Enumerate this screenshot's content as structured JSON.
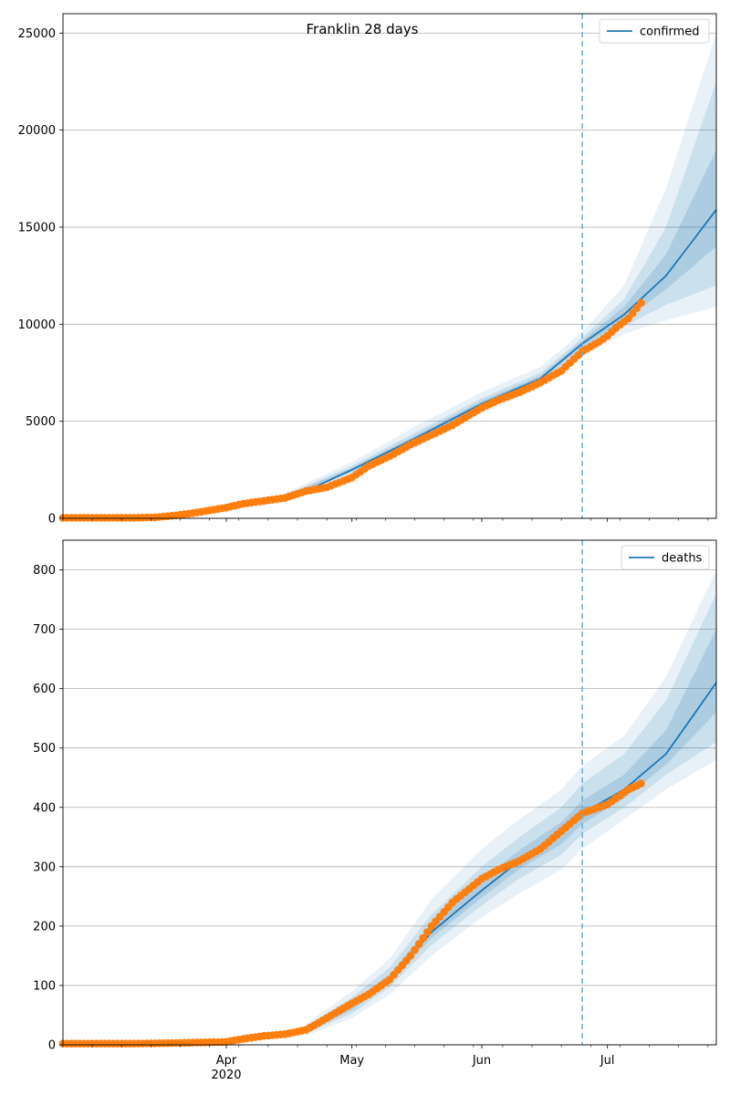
{
  "figure": {
    "title": "Franklin 28 days"
  },
  "colors": {
    "model": "#1f77b4",
    "observed": "#ff7f0e",
    "band": "#1f77b4",
    "grid": "#b0b0b0",
    "vline": "#6baed6"
  },
  "x_axis": {
    "start": "2020-02-22",
    "end": "2020-07-27",
    "ticks": [
      {
        "date": "2020-04-01",
        "label": "Apr",
        "sublabel": "2020"
      },
      {
        "date": "2020-05-01",
        "label": "May",
        "sublabel": ""
      },
      {
        "date": "2020-06-01",
        "label": "Jun",
        "sublabel": ""
      },
      {
        "date": "2020-07-01",
        "label": "Jul",
        "sublabel": ""
      }
    ],
    "forecast_start": "2020-06-25"
  },
  "chart_data": [
    {
      "type": "line",
      "title": "Franklin 28 days",
      "ylim": [
        0,
        26000
      ],
      "yticks": [
        0,
        5000,
        10000,
        15000,
        20000,
        25000
      ],
      "grid": true,
      "legend": "top-right",
      "series": [
        {
          "name": "confirmed",
          "kind": "model",
          "points": [
            [
              "2020-02-22",
              0
            ],
            [
              "2020-03-10",
              20
            ],
            [
              "2020-03-20",
              150
            ],
            [
              "2020-04-01",
              600
            ],
            [
              "2020-04-15",
              1100
            ],
            [
              "2020-04-20",
              1400
            ],
            [
              "2020-05-01",
              2500
            ],
            [
              "2020-05-15",
              4000
            ],
            [
              "2020-06-01",
              5900
            ],
            [
              "2020-06-15",
              7200
            ],
            [
              "2020-06-25",
              9000
            ],
            [
              "2020-07-05",
              10500
            ],
            [
              "2020-07-15",
              12500
            ],
            [
              "2020-07-27",
              15900
            ]
          ],
          "bands": [
            {
              "level": "outer",
              "lower": [
                [
                  "2020-04-15",
                  900
                ],
                [
                  "2020-05-01",
                  2200
                ],
                [
                  "2020-05-15",
                  3500
                ],
                [
                  "2020-06-01",
                  5400
                ],
                [
                  "2020-06-15",
                  6700
                ],
                [
                  "2020-06-25",
                  8400
                ],
                [
                  "2020-07-05",
                  9500
                ],
                [
                  "2020-07-15",
                  10200
                ],
                [
                  "2020-07-27",
                  10900
                ]
              ],
              "upper": [
                [
                  "2020-04-15",
                  1300
                ],
                [
                  "2020-05-01",
                  2900
                ],
                [
                  "2020-05-15",
                  4600
                ],
                [
                  "2020-06-01",
                  6500
                ],
                [
                  "2020-06-15",
                  7800
                ],
                [
                  "2020-06-25",
                  9600
                ],
                [
                  "2020-07-05",
                  12000
                ],
                [
                  "2020-07-15",
                  17000
                ],
                [
                  "2020-07-27",
                  25000
                ]
              ]
            },
            {
              "level": "middle",
              "lower": [
                [
                  "2020-04-15",
                  1000
                ],
                [
                  "2020-05-01",
                  2350
                ],
                [
                  "2020-05-15",
                  3750
                ],
                [
                  "2020-06-01",
                  5650
                ],
                [
                  "2020-06-15",
                  6950
                ],
                [
                  "2020-06-25",
                  8700
                ],
                [
                  "2020-07-05",
                  9900
                ],
                [
                  "2020-07-15",
                  11000
                ],
                [
                  "2020-07-27",
                  12000
                ]
              ],
              "upper": [
                [
                  "2020-04-15",
                  1200
                ],
                [
                  "2020-05-01",
                  2700
                ],
                [
                  "2020-05-15",
                  4300
                ],
                [
                  "2020-06-01",
                  6200
                ],
                [
                  "2020-06-15",
                  7500
                ],
                [
                  "2020-06-25",
                  9300
                ],
                [
                  "2020-07-05",
                  11300
                ],
                [
                  "2020-07-15",
                  15000
                ],
                [
                  "2020-07-27",
                  22500
                ]
              ]
            },
            {
              "level": "inner",
              "lower": [
                [
                  "2020-04-15",
                  1050
                ],
                [
                  "2020-05-01",
                  2420
                ],
                [
                  "2020-05-15",
                  3880
                ],
                [
                  "2020-06-01",
                  5780
                ],
                [
                  "2020-06-15",
                  7080
                ],
                [
                  "2020-06-25",
                  8850
                ],
                [
                  "2020-07-05",
                  10200
                ],
                [
                  "2020-07-15",
                  11800
                ],
                [
                  "2020-07-27",
                  14000
                ]
              ],
              "upper": [
                [
                  "2020-04-15",
                  1150
                ],
                [
                  "2020-05-01",
                  2600
                ],
                [
                  "2020-05-15",
                  4150
                ],
                [
                  "2020-06-01",
                  6050
                ],
                [
                  "2020-06-15",
                  7350
                ],
                [
                  "2020-06-25",
                  9150
                ],
                [
                  "2020-07-05",
                  10900
                ],
                [
                  "2020-07-15",
                  13600
                ],
                [
                  "2020-07-27",
                  19000
                ]
              ]
            }
          ]
        },
        {
          "name": "",
          "kind": "observed",
          "points": [
            [
              "2020-02-22",
              30
            ],
            [
              "2020-03-01",
              30
            ],
            [
              "2020-03-10",
              30
            ],
            [
              "2020-03-15",
              50
            ],
            [
              "2020-03-20",
              150
            ],
            [
              "2020-03-25",
              300
            ],
            [
              "2020-04-01",
              550
            ],
            [
              "2020-04-05",
              750
            ],
            [
              "2020-04-10",
              900
            ],
            [
              "2020-04-15",
              1050
            ],
            [
              "2020-04-20",
              1400
            ],
            [
              "2020-04-25",
              1600
            ],
            [
              "2020-05-01",
              2100
            ],
            [
              "2020-05-05",
              2700
            ],
            [
              "2020-05-10",
              3200
            ],
            [
              "2020-05-15",
              3800
            ],
            [
              "2020-05-20",
              4300
            ],
            [
              "2020-05-25",
              4800
            ],
            [
              "2020-06-01",
              5700
            ],
            [
              "2020-06-05",
              6100
            ],
            [
              "2020-06-10",
              6500
            ],
            [
              "2020-06-15",
              7000
            ],
            [
              "2020-06-20",
              7600
            ],
            [
              "2020-06-25",
              8600
            ],
            [
              "2020-06-29",
              9100
            ],
            [
              "2020-07-01",
              9400
            ],
            [
              "2020-07-03",
              9800
            ],
            [
              "2020-07-06",
              10300
            ],
            [
              "2020-07-09",
              11100
            ]
          ]
        }
      ]
    },
    {
      "type": "line",
      "title": "",
      "ylim": [
        0,
        850
      ],
      "yticks": [
        0,
        100,
        200,
        300,
        400,
        500,
        600,
        700,
        800
      ],
      "grid": true,
      "legend": "top-right",
      "series": [
        {
          "name": "deaths",
          "kind": "model",
          "points": [
            [
              "2020-02-22",
              0
            ],
            [
              "2020-03-20",
              2
            ],
            [
              "2020-04-01",
              5
            ],
            [
              "2020-04-10",
              12
            ],
            [
              "2020-04-20",
              25
            ],
            [
              "2020-05-01",
              65
            ],
            [
              "2020-05-10",
              110
            ],
            [
              "2020-05-20",
              190
            ],
            [
              "2020-06-01",
              260
            ],
            [
              "2020-06-10",
              310
            ],
            [
              "2020-06-20",
              355
            ],
            [
              "2020-06-25",
              390
            ],
            [
              "2020-07-05",
              430
            ],
            [
              "2020-07-15",
              490
            ],
            [
              "2020-07-27",
              610
            ]
          ],
          "bands": [
            {
              "level": "outer",
              "lower": [
                [
                  "2020-04-20",
                  15
                ],
                [
                  "2020-05-01",
                  45
                ],
                [
                  "2020-05-10",
                  85
                ],
                [
                  "2020-05-20",
                  150
                ],
                [
                  "2020-06-01",
                  215
                ],
                [
                  "2020-06-10",
                  255
                ],
                [
                  "2020-06-20",
                  295
                ],
                [
                  "2020-06-25",
                  330
                ],
                [
                  "2020-07-05",
                  380
                ],
                [
                  "2020-07-15",
                  430
                ],
                [
                  "2020-07-27",
                  480
                ]
              ],
              "upper": [
                [
                  "2020-04-20",
                  35
                ],
                [
                  "2020-05-01",
                  90
                ],
                [
                  "2020-05-10",
                  145
                ],
                [
                  "2020-05-20",
                  245
                ],
                [
                  "2020-06-01",
                  330
                ],
                [
                  "2020-06-10",
                  380
                ],
                [
                  "2020-06-20",
                  430
                ],
                [
                  "2020-06-25",
                  470
                ],
                [
                  "2020-07-05",
                  520
                ],
                [
                  "2020-07-15",
                  620
                ],
                [
                  "2020-07-27",
                  800
                ]
              ]
            },
            {
              "level": "middle",
              "lower": [
                [
                  "2020-04-20",
                  19
                ],
                [
                  "2020-05-01",
                  53
                ],
                [
                  "2020-05-10",
                  97
                ],
                [
                  "2020-05-20",
                  168
                ],
                [
                  "2020-06-01",
                  235
                ],
                [
                  "2020-06-10",
                  280
                ],
                [
                  "2020-06-20",
                  320
                ],
                [
                  "2020-06-25",
                  355
                ],
                [
                  "2020-07-05",
                  400
                ],
                [
                  "2020-07-15",
                  455
                ],
                [
                  "2020-07-27",
                  510
                ]
              ],
              "upper": [
                [
                  "2020-04-20",
                  31
                ],
                [
                  "2020-05-01",
                  80
                ],
                [
                  "2020-05-10",
                  130
                ],
                [
                  "2020-05-20",
                  220
                ],
                [
                  "2020-06-01",
                  300
                ],
                [
                  "2020-06-10",
                  350
                ],
                [
                  "2020-06-20",
                  400
                ],
                [
                  "2020-06-25",
                  440
                ],
                [
                  "2020-07-05",
                  490
                ],
                [
                  "2020-07-15",
                  580
                ],
                [
                  "2020-07-27",
                  760
                ]
              ]
            },
            {
              "level": "inner",
              "lower": [
                [
                  "2020-04-20",
                  22
                ],
                [
                  "2020-05-01",
                  59
                ],
                [
                  "2020-05-10",
                  104
                ],
                [
                  "2020-05-20",
                  180
                ],
                [
                  "2020-06-01",
                  248
                ],
                [
                  "2020-06-10",
                  296
                ],
                [
                  "2020-06-20",
                  338
                ],
                [
                  "2020-06-25",
                  372
                ],
                [
                  "2020-07-05",
                  415
                ],
                [
                  "2020-07-15",
                  472
                ],
                [
                  "2020-07-27",
                  560
                ]
              ],
              "upper": [
                [
                  "2020-04-20",
                  28
                ],
                [
                  "2020-05-01",
                  72
                ],
                [
                  "2020-05-10",
                  118
                ],
                [
                  "2020-05-20",
                  203
                ],
                [
                  "2020-06-01",
                  278
                ],
                [
                  "2020-06-10",
                  328
                ],
                [
                  "2020-06-20",
                  375
                ],
                [
                  "2020-06-25",
                  412
                ],
                [
                  "2020-07-05",
                  455
                ],
                [
                  "2020-07-15",
                  530
                ],
                [
                  "2020-07-27",
                  700
                ]
              ]
            }
          ]
        },
        {
          "name": "",
          "kind": "observed",
          "points": [
            [
              "2020-02-22",
              2
            ],
            [
              "2020-03-10",
              2
            ],
            [
              "2020-03-20",
              3
            ],
            [
              "2020-04-01",
              5
            ],
            [
              "2020-04-05",
              10
            ],
            [
              "2020-04-10",
              15
            ],
            [
              "2020-04-15",
              18
            ],
            [
              "2020-04-20",
              25
            ],
            [
              "2020-04-25",
              45
            ],
            [
              "2020-05-01",
              70
            ],
            [
              "2020-05-05",
              85
            ],
            [
              "2020-05-10",
              110
            ],
            [
              "2020-05-15",
              150
            ],
            [
              "2020-05-20",
              200
            ],
            [
              "2020-05-25",
              240
            ],
            [
              "2020-06-01",
              280
            ],
            [
              "2020-06-05",
              295
            ],
            [
              "2020-06-10",
              310
            ],
            [
              "2020-06-15",
              330
            ],
            [
              "2020-06-20",
              360
            ],
            [
              "2020-06-25",
              390
            ],
            [
              "2020-06-29",
              400
            ],
            [
              "2020-07-01",
              405
            ],
            [
              "2020-07-04",
              420
            ],
            [
              "2020-07-06",
              430
            ],
            [
              "2020-07-09",
              440
            ]
          ]
        }
      ]
    }
  ]
}
